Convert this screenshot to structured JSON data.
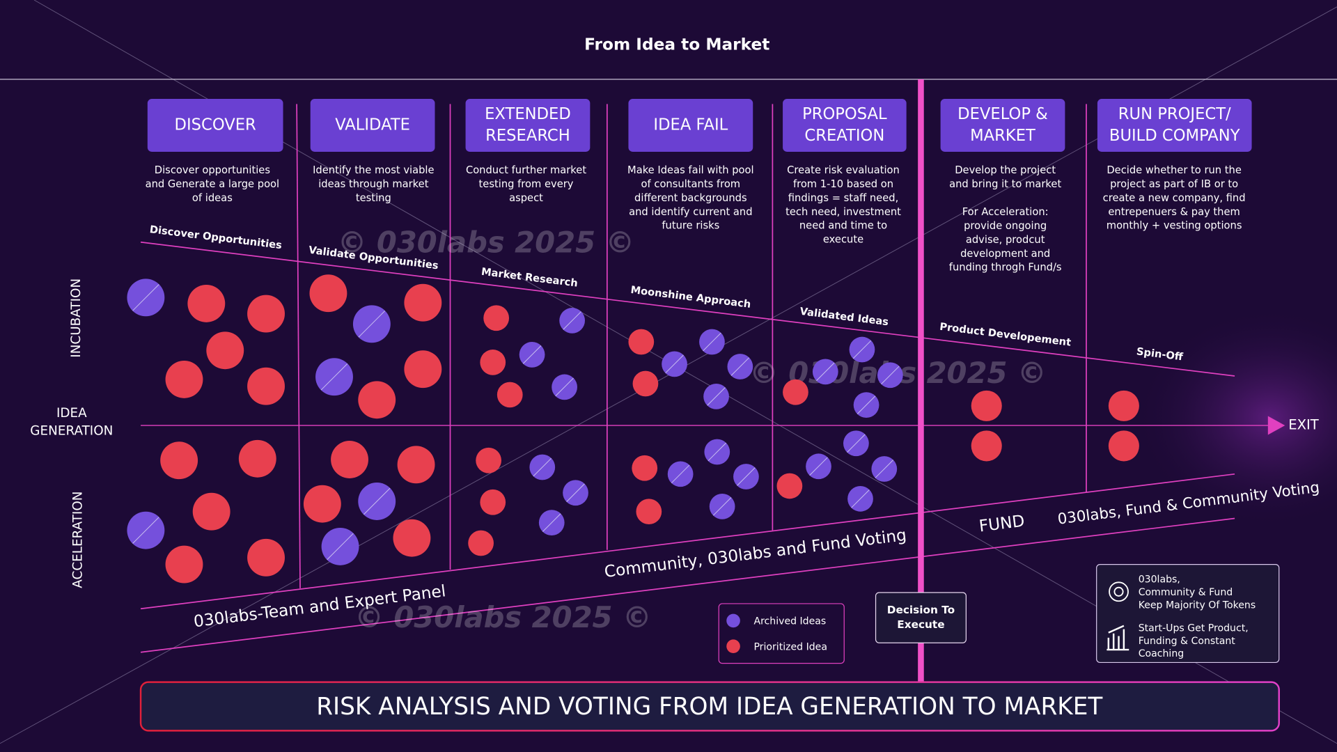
{
  "header": {
    "title": "From Idea to Market"
  },
  "stages": [
    {
      "title": [
        "DISCOVER"
      ],
      "description": [
        "Discover opportunities",
        "and Generate a large pool",
        "of ideas"
      ]
    },
    {
      "title": [
        "VALIDATE"
      ],
      "description": [
        "Identify the most viable",
        "ideas through market",
        "testing"
      ]
    },
    {
      "title": [
        "EXTENDED",
        "RESEARCH"
      ],
      "description": [
        "Conduct further market",
        "testing from every",
        "aspect"
      ]
    },
    {
      "title": [
        "IDEA FAIL"
      ],
      "description": [
        "Make Ideas fail with pool",
        "of consultants from",
        "different backgrounds",
        "and identify current and",
        "future risks"
      ]
    },
    {
      "title": [
        "PROPOSAL",
        "CREATION"
      ],
      "description": [
        "Create risk evaluation",
        "from 1-10 based on",
        "findings = staff need,",
        "tech need, investment",
        "need and time to",
        "execute"
      ]
    },
    {
      "title": [
        "DEVELOP &",
        "MARKET"
      ],
      "description": [
        "Develop the project",
        "and bring it to market"
      ],
      "note": [
        "For Acceleration:",
        "provide ongoing",
        "advise, prodcut",
        "development and",
        "funding throgh Fund/s"
      ]
    },
    {
      "title": [
        "RUN PROJECT/",
        "BUILD COMPANY"
      ],
      "description": [
        "Decide whether to run the",
        "project as part of IB or to",
        "create a new company, find",
        "entrepenuers & pay them",
        "monthly + vesting options"
      ]
    }
  ],
  "funnel_labels": [
    "Discover Opportunities",
    "Validate Opportunities",
    "Market Research",
    "Moonshine Approach",
    "Validated Ideas",
    "Product Developement",
    "Spin-Off"
  ],
  "row_labels": {
    "incubation": "INCUBATION",
    "idea_generation": [
      "IDEA",
      "GENERATION"
    ],
    "acceleration": "ACCELERATION"
  },
  "exit": "EXIT",
  "voting": [
    "030labs-Team and Expert Panel",
    "Community, 030labs and Fund Voting",
    "FUND",
    "030labs, Fund & Community Voting"
  ],
  "legend": [
    {
      "label": "Archived Ideas",
      "color": "#7550dc"
    },
    {
      "label": "Prioritized Idea",
      "color": "#e8404f"
    }
  ],
  "decision": [
    "Decision To",
    "Execute"
  ],
  "info": [
    [
      "030labs,",
      "Community & Fund",
      "Keep Majority Of Tokens"
    ],
    [
      "Start-Ups Get Product,",
      "Funding & Constant",
      "Coaching"
    ]
  ],
  "banner": "RISK ANALYSIS AND VOTING FROM IDEA GENERATION TO MARKET",
  "watermarks": [
    "© 030labs 2025 ©",
    "© 030labs 2025 ©",
    "© 030labs 2025 ©"
  ]
}
